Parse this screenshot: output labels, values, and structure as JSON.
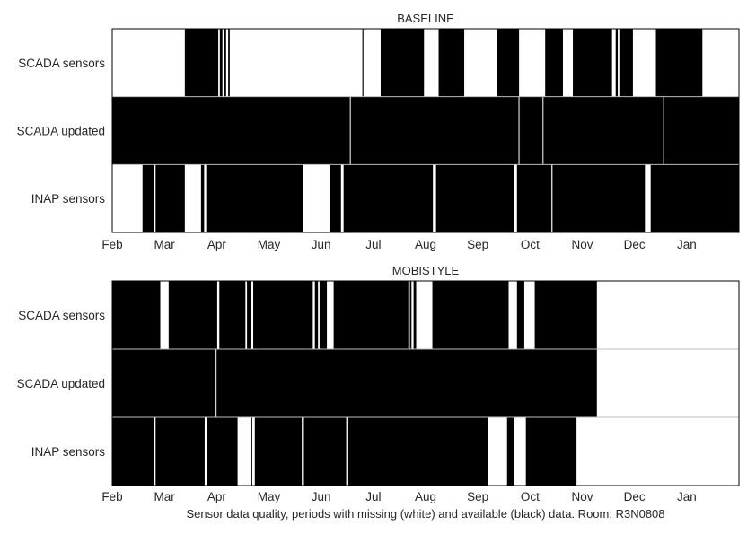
{
  "caption": "Sensor data quality, periods with missing (white) and available (black) data. Room: R3N0808",
  "colors": {
    "available": "#000000",
    "missing": "#ffffff",
    "frame": "#000000",
    "separator": "#bcbcbc"
  },
  "chart_data": [
    {
      "type": "heatmap",
      "title": "BASELINE",
      "xlim": [
        "Feb",
        "Jan+"
      ],
      "x_ticks": [
        "Feb",
        "Mar",
        "Apr",
        "May",
        "Jun",
        "Jul",
        "Aug",
        "Sep",
        "Oct",
        "Nov",
        "Dec",
        "Jan"
      ],
      "rows": [
        {
          "label": "SCADA sensors",
          "available": [
            [
              1.39,
              2.03
            ],
            [
              2.06,
              2.11
            ],
            [
              2.14,
              2.18
            ],
            [
              2.22,
              2.25
            ],
            [
              4.79,
              4.81
            ],
            [
              5.14,
              5.97
            ],
            [
              6.25,
              6.74
            ],
            [
              7.37,
              7.79
            ],
            [
              8.29,
              8.63
            ],
            [
              8.82,
              9.57
            ],
            [
              9.48,
              9.53
            ],
            [
              9.64,
              9.68
            ],
            [
              9.71,
              9.97
            ],
            [
              10.41,
              11.3
            ]
          ]
        },
        {
          "label": "SCADA updated",
          "available": [
            [
              0.0,
              12.0
            ]
          ],
          "gaps": [
            [
              4.55,
              4.56
            ],
            [
              7.78,
              7.79
            ],
            [
              8.24,
              8.25
            ],
            [
              10.55,
              10.57
            ]
          ]
        },
        {
          "label": "INAP sensors",
          "available": [
            [
              0.58,
              0.8
            ],
            [
              0.83,
              1.39
            ],
            [
              1.7,
              1.76
            ],
            [
              1.8,
              3.65
            ],
            [
              4.16,
              4.38
            ],
            [
              4.43,
              6.14
            ],
            [
              6.2,
              7.7
            ],
            [
              7.75,
              8.41
            ],
            [
              8.43,
              10.2
            ],
            [
              10.31,
              12.0
            ]
          ]
        }
      ]
    },
    {
      "type": "heatmap",
      "title": "MOBISTYLE",
      "xlim": [
        "Feb",
        "Jan+"
      ],
      "x_ticks": [
        "Feb",
        "Mar",
        "Apr",
        "May",
        "Jun",
        "Jul",
        "Aug",
        "Sep",
        "Oct",
        "Nov",
        "Dec",
        "Jan"
      ],
      "rows": [
        {
          "label": "SCADA sensors",
          "available": [
            [
              0.0,
              0.92
            ],
            [
              1.08,
              2.01
            ],
            [
              2.05,
              2.55
            ],
            [
              2.58,
              2.66
            ],
            [
              2.7,
              3.84
            ],
            [
              3.88,
              3.94
            ],
            [
              3.97,
              4.11
            ],
            [
              4.24,
              5.67
            ],
            [
              5.7,
              5.73
            ],
            [
              5.77,
              5.82
            ],
            [
              6.13,
              7.59
            ],
            [
              7.75,
              7.89
            ],
            [
              8.09,
              9.28
            ]
          ]
        },
        {
          "label": "SCADA updated",
          "available": [
            [
              0.0,
              9.28
            ]
          ],
          "gaps": [
            [
              1.98,
              1.99
            ]
          ]
        },
        {
          "label": "INAP sensors",
          "available": [
            [
              0.0,
              0.8
            ],
            [
              0.83,
              1.77
            ],
            [
              1.81,
              2.4
            ],
            [
              2.65,
              2.68
            ],
            [
              2.73,
              3.63
            ],
            [
              3.67,
              4.48
            ],
            [
              4.52,
              7.19
            ],
            [
              7.56,
              7.7
            ],
            [
              7.92,
              8.89
            ]
          ]
        }
      ]
    }
  ]
}
